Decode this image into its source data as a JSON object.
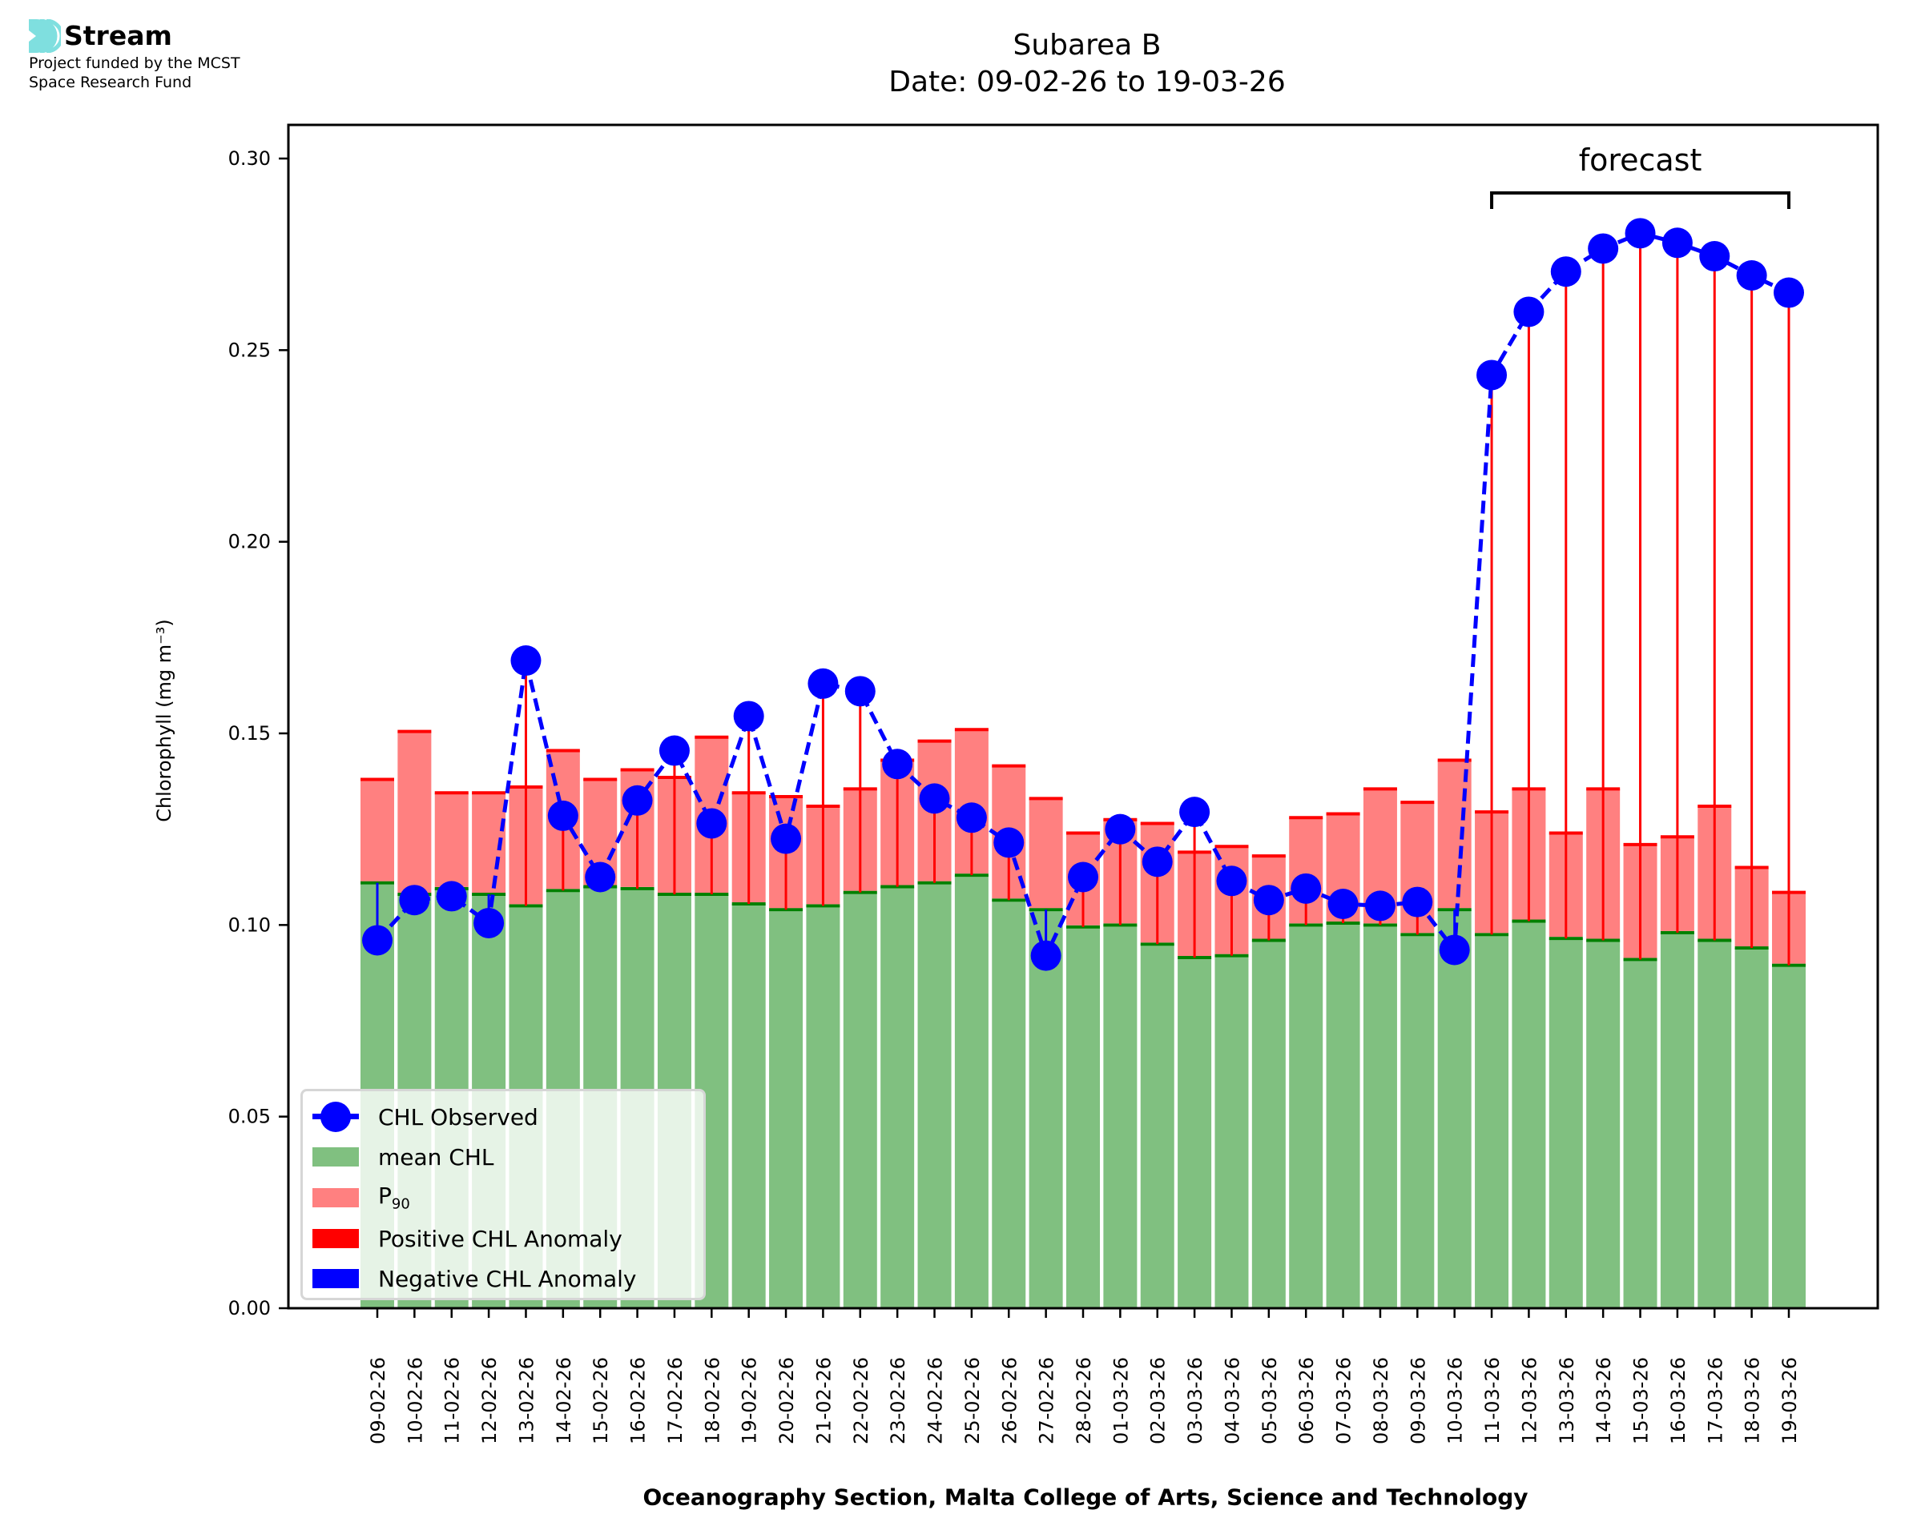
{
  "branding": {
    "name": "Stream",
    "subtitle_line1": "Project funded by the MCST",
    "subtitle_line2": "Space Research Fund",
    "icon": "stream-waves-icon",
    "icon_color": "#7fdfdf"
  },
  "colors": {
    "mean_bar": "#80c080",
    "mean_edge": "#008000",
    "p90_bar": "#ff8080",
    "p90_edge": "#ff0000",
    "observed": "#0000ff",
    "positive_anomaly": "#ff0000",
    "negative_anomaly": "#0000ff"
  },
  "chart_data": {
    "type": "bar",
    "title": "Subarea B",
    "subtitle": "Date: 09-02-26 to 19-03-26",
    "xlabel": "Oceanography Section, Malta College of Arts, Science and Technology",
    "ylabel": "Chlorophyll (mg m⁻³)",
    "ylim": [
      0,
      0.31
    ],
    "yticks": [
      "0.00",
      "0.05",
      "0.10",
      "0.15",
      "0.20",
      "0.25",
      "0.30"
    ],
    "ytick_values": [
      0,
      0.05,
      0.1,
      0.15,
      0.2,
      0.25,
      0.3
    ],
    "grid": false,
    "legend_position": "lower-left",
    "categories": [
      "09-02-26",
      "10-02-26",
      "11-02-26",
      "12-02-26",
      "13-02-26",
      "14-02-26",
      "15-02-26",
      "16-02-26",
      "17-02-26",
      "18-02-26",
      "19-02-26",
      "20-02-26",
      "21-02-26",
      "22-02-26",
      "23-02-26",
      "24-02-26",
      "25-02-26",
      "26-02-26",
      "27-02-26",
      "28-02-26",
      "01-03-26",
      "02-03-26",
      "03-03-26",
      "04-03-26",
      "05-03-26",
      "06-03-26",
      "07-03-26",
      "08-03-26",
      "09-03-26",
      "10-03-26",
      "11-03-26",
      "12-03-26",
      "13-03-26",
      "14-03-26",
      "15-03-26",
      "16-03-26",
      "17-03-26",
      "18-03-26",
      "19-03-26"
    ],
    "series": [
      {
        "name": "mean CHL",
        "kind": "bar",
        "values": [
          0.111,
          0.108,
          0.1095,
          0.108,
          0.105,
          0.109,
          0.11,
          0.1095,
          0.108,
          0.108,
          0.1055,
          0.104,
          0.105,
          0.1085,
          0.11,
          0.111,
          0.113,
          0.1065,
          0.104,
          0.0995,
          0.1,
          0.095,
          0.0915,
          0.092,
          0.096,
          0.1,
          0.1005,
          0.1,
          0.0975,
          0.104,
          0.0975,
          0.101,
          0.0965,
          0.096,
          0.091,
          0.098,
          0.096,
          0.094,
          0.0895
        ]
      },
      {
        "name": "P90",
        "kind": "bar",
        "values": [
          0.138,
          0.1505,
          0.1345,
          0.1345,
          0.136,
          0.1455,
          0.138,
          0.1405,
          0.1385,
          0.149,
          0.1345,
          0.1335,
          0.131,
          0.1355,
          0.143,
          0.148,
          0.151,
          0.1415,
          0.133,
          0.124,
          0.1275,
          0.1265,
          0.119,
          0.1205,
          0.118,
          0.128,
          0.129,
          0.1355,
          0.132,
          0.143,
          0.1295,
          0.1355,
          0.124,
          0.1355,
          0.121,
          0.123,
          0.131,
          0.115,
          0.1085
        ]
      },
      {
        "name": "CHL Observed",
        "kind": "line",
        "values": [
          0.096,
          0.1065,
          0.1075,
          0.1005,
          0.169,
          0.1285,
          0.1125,
          0.1325,
          0.1455,
          0.1265,
          0.1545,
          0.1225,
          0.163,
          0.161,
          0.142,
          0.133,
          0.128,
          0.1215,
          0.092,
          0.1125,
          0.125,
          0.1165,
          0.1295,
          0.1115,
          0.1065,
          0.1095,
          0.1055,
          0.105,
          0.106,
          0.0935,
          0.2435,
          0.26,
          0.2705,
          0.2765,
          0.2805,
          0.278,
          0.2745,
          0.2695,
          0.265
        ]
      }
    ],
    "legend": [
      {
        "label": "CHL Observed",
        "type": "line-marker"
      },
      {
        "label": "mean CHL",
        "type": "patch"
      },
      {
        "label": "P",
        "sub": "90",
        "type": "patch"
      },
      {
        "label": "Positive CHL Anomaly",
        "type": "patch"
      },
      {
        "label": "Negative CHL Anomaly",
        "type": "patch"
      }
    ],
    "annotation": {
      "text": "forecast",
      "from": "11-03-26",
      "to": "19-03-26"
    }
  }
}
